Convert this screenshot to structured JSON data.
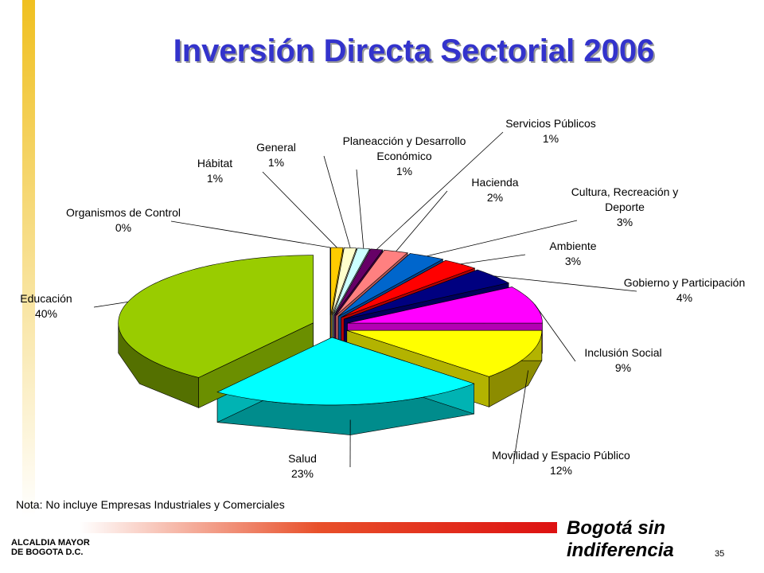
{
  "chart_data": {
    "type": "pie",
    "title": "Inversión Directa Sectorial 2006",
    "categories": [
      "Organismos de Control",
      "Hábitat",
      "General",
      "Planeacción y Desarrollo Económico",
      "Servicios Públicos",
      "Hacienda",
      "Cultura, Recreación y Deporte",
      "Ambiente",
      "Gobierno y Participación",
      "Inclusión Social",
      "Movilidad y Espacio Público",
      "Salud",
      "Educación"
    ],
    "values": [
      0,
      1,
      1,
      1,
      1,
      2,
      3,
      3,
      4,
      9,
      12,
      23,
      40
    ],
    "value_labels": [
      "0%",
      "1%",
      "1%",
      "1%",
      "1%",
      "2%",
      "3%",
      "3%",
      "4%",
      "9%",
      "12%",
      "23%",
      "40%"
    ],
    "colors": [
      "#3355cc",
      "#ffcc00",
      "#ffffcc",
      "#ccffff",
      "#660066",
      "#ff8080",
      "#0066cc",
      "#ff0000",
      "#000080",
      "#ff00ff",
      "#ffff00",
      "#00ffff",
      "#99cc00"
    ]
  },
  "slide": {
    "note": "Nota: No incluye Empresas Industriales y Comerciales",
    "org": [
      "ALCALDIA MAYOR",
      "DE BOGOTA D.C."
    ],
    "brand": "Bogotá sin indiferencia",
    "page": "35"
  }
}
